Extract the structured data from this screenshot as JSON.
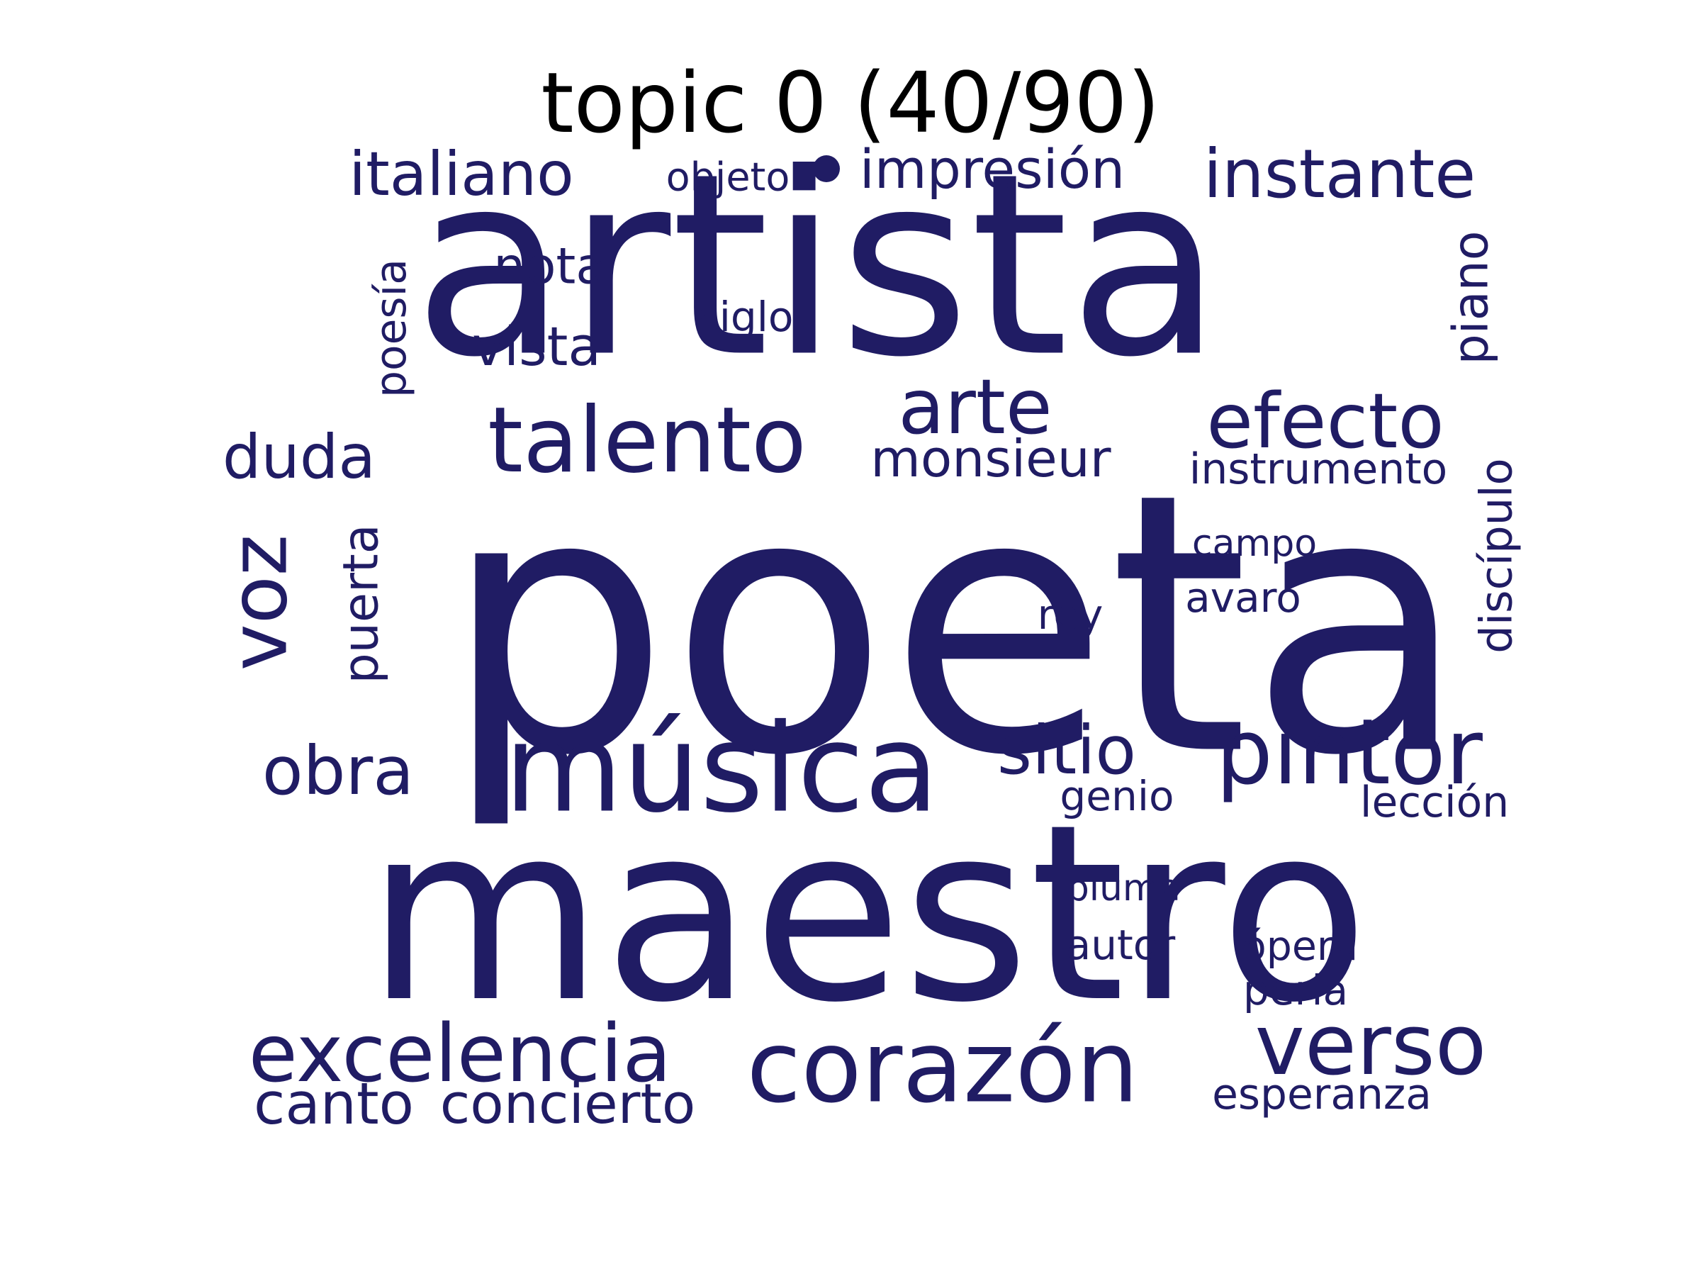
{
  "title": "topic 0 (40/90)",
  "colors": {
    "word": "#201C64",
    "title": "#000000",
    "background": "#FFFFFF"
  },
  "words": [
    {
      "id": "artista",
      "text": "artista",
      "weight": 1.0,
      "orientation": "horizontal"
    },
    {
      "id": "poeta",
      "text": "poeta",
      "weight": 1.0,
      "orientation": "horizontal"
    },
    {
      "id": "maestro",
      "text": "maestro",
      "weight": 1.0,
      "orientation": "horizontal"
    },
    {
      "id": "musica",
      "text": "música",
      "weight": 0.5,
      "orientation": "horizontal"
    },
    {
      "id": "corazon",
      "text": "corazón",
      "weight": 0.5,
      "orientation": "horizontal"
    },
    {
      "id": "verso",
      "text": "verso",
      "weight": 0.5,
      "orientation": "horizontal"
    },
    {
      "id": "talento",
      "text": "talento",
      "weight": 0.45,
      "orientation": "horizontal"
    },
    {
      "id": "pintor",
      "text": "pintor",
      "weight": 0.45,
      "orientation": "horizontal"
    },
    {
      "id": "voz",
      "text": "voz",
      "weight": 0.45,
      "orientation": "vertical"
    },
    {
      "id": "excelencia",
      "text": "excelencia",
      "weight": 0.4,
      "orientation": "horizontal"
    },
    {
      "id": "efecto",
      "text": "efecto",
      "weight": 0.4,
      "orientation": "horizontal"
    },
    {
      "id": "arte",
      "text": "arte",
      "weight": 0.4,
      "orientation": "horizontal"
    },
    {
      "id": "duda",
      "text": "duda",
      "weight": 0.4,
      "orientation": "horizontal"
    },
    {
      "id": "instante",
      "text": "instante",
      "weight": 0.35,
      "orientation": "horizontal"
    },
    {
      "id": "sitio",
      "text": "sitio",
      "weight": 0.35,
      "orientation": "horizontal"
    },
    {
      "id": "obra",
      "text": "obra",
      "weight": 0.35,
      "orientation": "horizontal"
    },
    {
      "id": "italiano",
      "text": "italiano",
      "weight": 0.33,
      "orientation": "horizontal"
    },
    {
      "id": "puerta",
      "text": "puerta",
      "weight": 0.33,
      "orientation": "vertical"
    },
    {
      "id": "piano",
      "text": "piano",
      "weight": 0.3,
      "orientation": "vertical"
    },
    {
      "id": "canto",
      "text": "canto",
      "weight": 0.28,
      "orientation": "horizontal"
    },
    {
      "id": "impresion",
      "text": "impresión",
      "weight": 0.28,
      "orientation": "horizontal"
    },
    {
      "id": "concierto",
      "text": "concierto",
      "weight": 0.27,
      "orientation": "horizontal"
    },
    {
      "id": "poesia",
      "text": "poesía",
      "weight": 0.27,
      "orientation": "vertical"
    },
    {
      "id": "vista",
      "text": "vista",
      "weight": 0.27,
      "orientation": "horizontal"
    },
    {
      "id": "nota",
      "text": "nota",
      "weight": 0.26,
      "orientation": "horizontal"
    },
    {
      "id": "monsieur",
      "text": "monsieur",
      "weight": 0.26,
      "orientation": "horizontal"
    },
    {
      "id": "discipulo",
      "text": "discípulo",
      "weight": 0.25,
      "orientation": "vertical"
    },
    {
      "id": "instrumento",
      "text": "instrumento",
      "weight": 0.22,
      "orientation": "horizontal"
    },
    {
      "id": "esperanza",
      "text": "esperanza",
      "weight": 0.22,
      "orientation": "horizontal"
    },
    {
      "id": "leccion",
      "text": "lección",
      "weight": 0.21,
      "orientation": "horizontal"
    },
    {
      "id": "objeto",
      "text": "objeto",
      "weight": 0.21,
      "orientation": "horizontal"
    },
    {
      "id": "pluma",
      "text": "pluma",
      "weight": 0.21,
      "orientation": "horizontal"
    },
    {
      "id": "campo",
      "text": "campo",
      "weight": 0.21,
      "orientation": "horizontal"
    },
    {
      "id": "avaro",
      "text": "avaro",
      "weight": 0.2,
      "orientation": "horizontal"
    },
    {
      "id": "siglo",
      "text": "siglo",
      "weight": 0.2,
      "orientation": "horizontal"
    },
    {
      "id": "autor",
      "text": "autor",
      "weight": 0.2,
      "orientation": "horizontal"
    },
    {
      "id": "opera",
      "text": "ópera",
      "weight": 0.2,
      "orientation": "horizontal"
    },
    {
      "id": "perla",
      "text": "perla",
      "weight": 0.2,
      "orientation": "horizontal"
    },
    {
      "id": "genio",
      "text": "genio",
      "weight": 0.2,
      "orientation": "horizontal"
    },
    {
      "id": "rey",
      "text": "rey",
      "weight": 0.2,
      "orientation": "horizontal"
    }
  ]
}
